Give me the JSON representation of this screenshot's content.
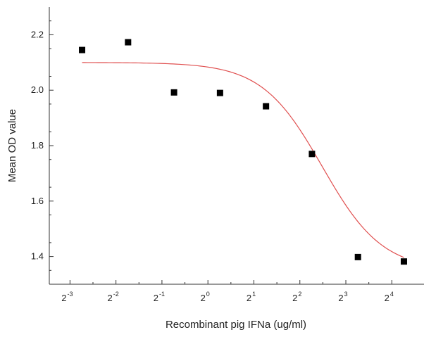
{
  "chart_data": {
    "type": "scatter",
    "title": "",
    "xlabel": "Recombinant pig IFNa (ug/ml)",
    "ylabel": "Mean OD value",
    "x_ticks": [
      {
        "base": "2",
        "exp": "-3"
      },
      {
        "base": "2",
        "exp": "-2"
      },
      {
        "base": "2",
        "exp": "-1"
      },
      {
        "base": "2",
        "exp": "0"
      },
      {
        "base": "2",
        "exp": "1"
      },
      {
        "base": "2",
        "exp": "2"
      },
      {
        "base": "2",
        "exp": "3"
      },
      {
        "base": "2",
        "exp": "4"
      }
    ],
    "y_ticks": [
      "1.4",
      "1.6",
      "1.8",
      "2.0",
      "2.2"
    ],
    "xlim_log2": [
      -3.45,
      4.7
    ],
    "ylim": [
      1.3,
      2.3
    ],
    "grid": false,
    "colors": {
      "points": "#000000",
      "fit": "#e05050",
      "axis": "#333333"
    },
    "series": [
      {
        "marker": "square",
        "x": [
          0.15,
          0.3,
          0.6,
          1.2,
          2.4,
          4.8,
          9.6,
          19.2
        ],
        "y": [
          2.145,
          2.173,
          1.992,
          1.99,
          1.942,
          1.77,
          1.398,
          1.382
        ]
      }
    ],
    "fit_curve": {
      "type": "sigmoid",
      "x_range": [
        0.15,
        19.2
      ],
      "top": 2.1,
      "bottom": 1.35,
      "x50": 5.6,
      "hill": 2.2
    }
  }
}
